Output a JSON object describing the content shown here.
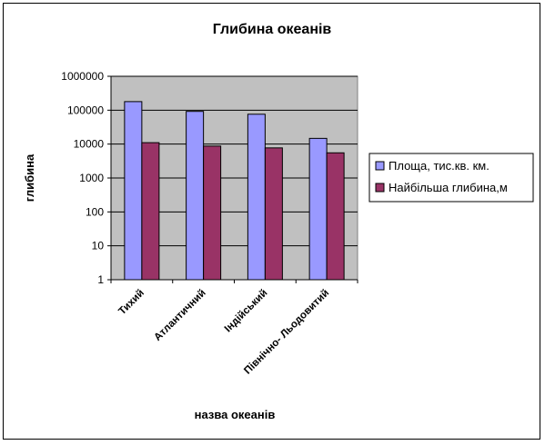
{
  "chart_data": {
    "type": "bar",
    "title": "Глибина океанів",
    "xlabel": "назва океанів",
    "ylabel": "глибина",
    "yscale": "log",
    "ylim": [
      1,
      1000000
    ],
    "yticks": [
      "1000000",
      "100000",
      "10000",
      "1000",
      "100",
      "10",
      "1"
    ],
    "categories": [
      "Тихий",
      "Атлантичний",
      "Індійський",
      "Північно- Льодовитий"
    ],
    "series": [
      {
        "name": "Площа, тис.кв. км.",
        "color": "#9999ff",
        "values": [
          179000,
          92000,
          76000,
          14750
        ]
      },
      {
        "name": "Найбільша глибина,м",
        "color": "#993366",
        "values": [
          11022,
          8742,
          7729,
          5527
        ]
      }
    ],
    "grid": true,
    "legend_position": "right",
    "plot_background": "#c0c0c0"
  }
}
